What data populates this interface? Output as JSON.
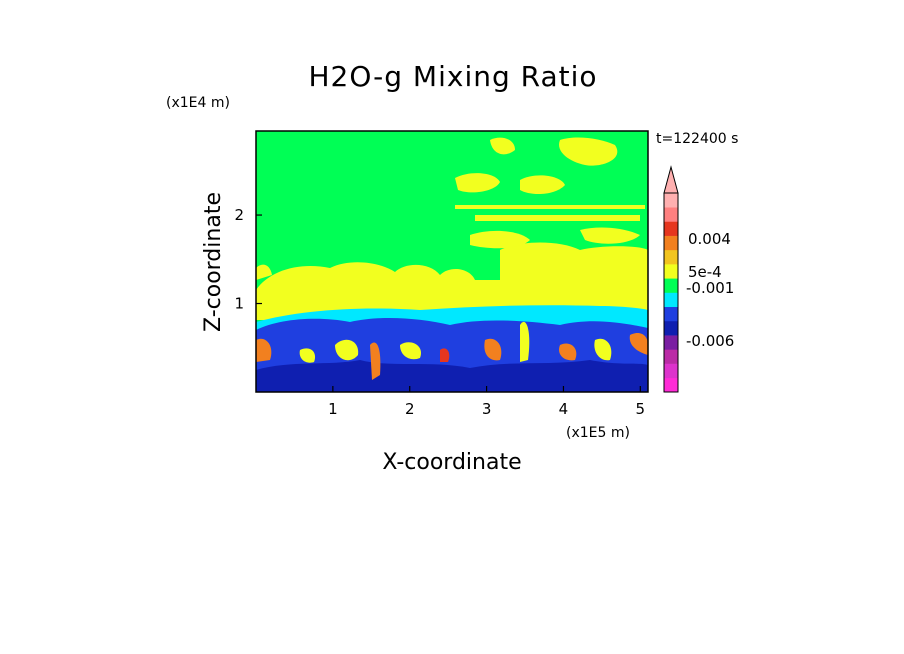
{
  "chart_data": {
    "type": "heatmap",
    "title": "H2O-g Mixing Ratio",
    "xlabel": "X-coordinate",
    "ylabel": "Z-coordinate",
    "x_unit": "(x1E5 m)",
    "y_unit": "(x1E4 m)",
    "time_label": "t=122400 s",
    "xlim": [
      0,
      5.1
    ],
    "ylim": [
      0,
      2.95
    ],
    "x_ticks": [
      "1",
      "2",
      "3",
      "4",
      "5"
    ],
    "y_ticks": [
      "1",
      "2"
    ],
    "colorbar": {
      "labels": [
        "0.004",
        "5e-4",
        "-0.001",
        "-0.006"
      ],
      "colors": [
        "#ff2bd6",
        "#dd33cc",
        "#bb2ba6",
        "#7a1fa2",
        "#0f1fb0",
        "#1f3fe0",
        "#00e8ff",
        "#00ff55",
        "#f2ff1f",
        "#f2c41f",
        "#f2801f",
        "#e6361f",
        "#ff8080",
        "#ffb0b0"
      ]
    },
    "background_level": "green",
    "regions": [
      {
        "name": "upper",
        "z_range": [
          1.0,
          2.95
        ],
        "dominant": "green",
        "patches": "yellow"
      },
      {
        "name": "transition",
        "z_range": [
          0.6,
          1.0
        ],
        "dominant": "cyan"
      },
      {
        "name": "lower",
        "z_range": [
          0.0,
          0.6
        ],
        "dominant": "blue",
        "patches": "orange"
      }
    ]
  },
  "colors": {
    "green": "#00ff55",
    "yellow": "#f2ff1f",
    "cyan": "#00e8ff",
    "blue": "#1f3fe0",
    "navy": "#0f1fb0",
    "orange": "#f2801f",
    "red": "#e6361f"
  }
}
